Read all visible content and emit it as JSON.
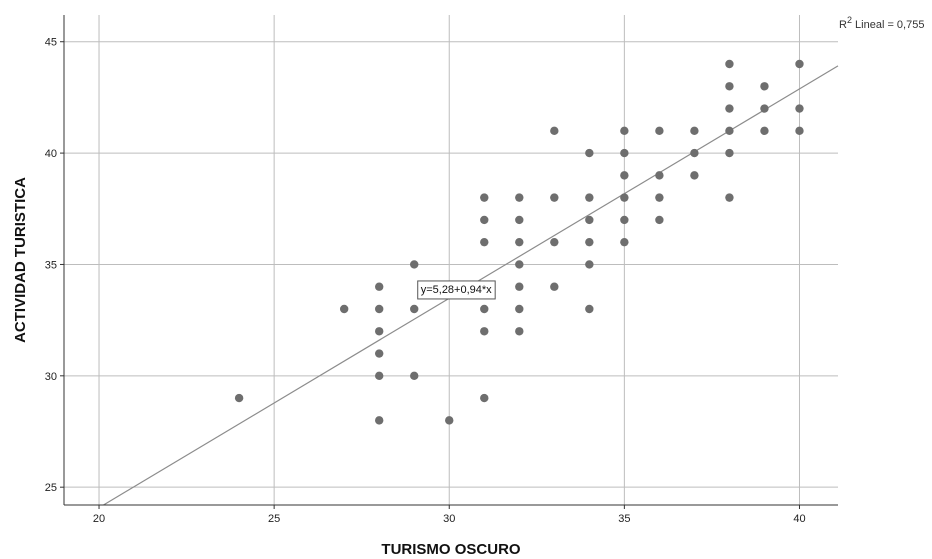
{
  "chart_data": {
    "type": "scatter",
    "title": "",
    "xlabel": "TURISMO OSCURO",
    "ylabel": "ACTIVIDAD TURISTICA",
    "xlim": [
      19,
      41.1
    ],
    "ylim": [
      24.2,
      46.2
    ],
    "x_ticks": [
      "20",
      "25",
      "30",
      "35",
      "40"
    ],
    "y_ticks": [
      "25",
      "30",
      "35",
      "40",
      "45"
    ],
    "grid": true,
    "r2_label": "Lineal = 0,755",
    "fit": {
      "intercept": 5.28,
      "slope": 0.94,
      "label": "y=5,28+0,94*x"
    },
    "colors": {
      "points": "#6e6e6e",
      "fit_line": "#8c8c8c",
      "grid": "#bdbdbd",
      "axis": "#333333"
    },
    "points": [
      {
        "x": 24,
        "y": 29
      },
      {
        "x": 27,
        "y": 33
      },
      {
        "x": 28,
        "y": 34
      },
      {
        "x": 28,
        "y": 33
      },
      {
        "x": 28,
        "y": 32
      },
      {
        "x": 28,
        "y": 31
      },
      {
        "x": 28,
        "y": 30
      },
      {
        "x": 28,
        "y": 28
      },
      {
        "x": 29,
        "y": 35
      },
      {
        "x": 29,
        "y": 33
      },
      {
        "x": 29,
        "y": 30
      },
      {
        "x": 30,
        "y": 34
      },
      {
        "x": 30,
        "y": 28
      },
      {
        "x": 31,
        "y": 38
      },
      {
        "x": 31,
        "y": 37
      },
      {
        "x": 31,
        "y": 36
      },
      {
        "x": 31,
        "y": 33
      },
      {
        "x": 31,
        "y": 32
      },
      {
        "x": 31,
        "y": 29
      },
      {
        "x": 32,
        "y": 38
      },
      {
        "x": 32,
        "y": 37
      },
      {
        "x": 32,
        "y": 36
      },
      {
        "x": 32,
        "y": 35
      },
      {
        "x": 32,
        "y": 34
      },
      {
        "x": 32,
        "y": 33
      },
      {
        "x": 32,
        "y": 32
      },
      {
        "x": 33,
        "y": 41
      },
      {
        "x": 33,
        "y": 38
      },
      {
        "x": 33,
        "y": 36
      },
      {
        "x": 33,
        "y": 34
      },
      {
        "x": 34,
        "y": 40
      },
      {
        "x": 34,
        "y": 38
      },
      {
        "x": 34,
        "y": 37
      },
      {
        "x": 34,
        "y": 36
      },
      {
        "x": 34,
        "y": 35
      },
      {
        "x": 34,
        "y": 33
      },
      {
        "x": 35,
        "y": 41
      },
      {
        "x": 35,
        "y": 40
      },
      {
        "x": 35,
        "y": 39
      },
      {
        "x": 35,
        "y": 38
      },
      {
        "x": 35,
        "y": 37
      },
      {
        "x": 35,
        "y": 36
      },
      {
        "x": 36,
        "y": 41
      },
      {
        "x": 36,
        "y": 39
      },
      {
        "x": 36,
        "y": 38
      },
      {
        "x": 36,
        "y": 37
      },
      {
        "x": 37,
        "y": 41
      },
      {
        "x": 37,
        "y": 40
      },
      {
        "x": 37,
        "y": 39
      },
      {
        "x": 38,
        "y": 44
      },
      {
        "x": 38,
        "y": 43
      },
      {
        "x": 38,
        "y": 42
      },
      {
        "x": 38,
        "y": 41
      },
      {
        "x": 38,
        "y": 40
      },
      {
        "x": 38,
        "y": 38
      },
      {
        "x": 39,
        "y": 43
      },
      {
        "x": 39,
        "y": 42
      },
      {
        "x": 39,
        "y": 41
      },
      {
        "x": 40,
        "y": 44
      },
      {
        "x": 40,
        "y": 42
      },
      {
        "x": 40,
        "y": 41
      }
    ]
  }
}
